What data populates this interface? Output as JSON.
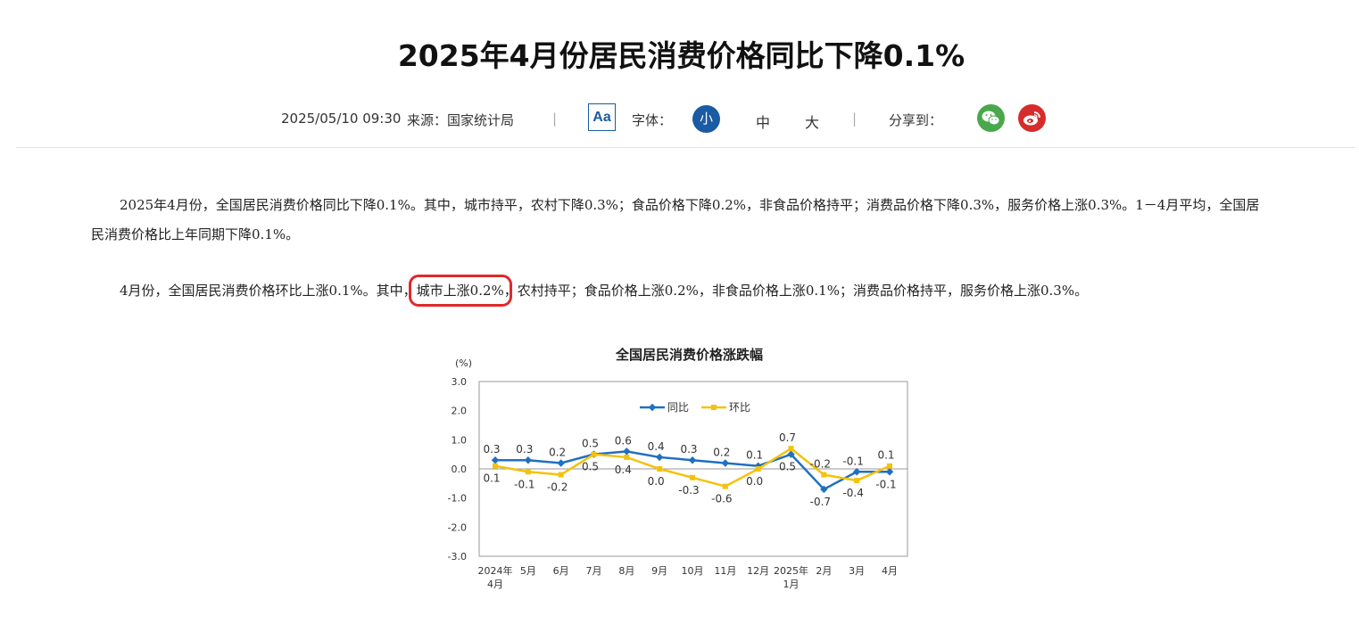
{
  "article": {
    "title": "2025年4月份居民消费价格同比下降0.1%",
    "datetime": "2025/05/10 09:30",
    "source": "来源：国家统计局",
    "separator": "|",
    "aa_label": "Aa",
    "font_label": "字体：",
    "font_sizes": [
      "小",
      "中",
      "大"
    ],
    "share_label": "分享到：",
    "share_icons": [
      "wechat-icon",
      "weibo-icon"
    ],
    "paragraph1": "2025年4月份，全国居民消费价格同比下降0.1%。其中，城市持平，农村下降0.3%；食品价格下降0.2%，非食品价格持平；消费品价格下降0.3%，服务价格上涨0.3%。1－4月平均，全国居民消费价格比上年同期下降0.1%。",
    "paragraph2_before": "4月份，全国居民消费价格环比上涨0.1%。其中，",
    "paragraph2_highlight": "城市上涨0.2%",
    "paragraph2_after": "，农村持平；食品价格上涨0.2%，非食品价格上涨0.1%；消费品价格持平，服务价格上涨0.3%。"
  },
  "colors": {
    "accent_blue": "#1a5ba3",
    "yoy_line": "#1f70c1",
    "mom_line": "#f4c20d",
    "highlight_box": "#e0292b",
    "wechat": "#4aa84c",
    "weibo": "#d62c2c"
  },
  "chart_data": {
    "type": "line",
    "title": "全国居民消费价格涨跌幅",
    "unit_label": "(%)",
    "categories": [
      "2024年\n4月",
      "5月",
      "6月",
      "7月",
      "8月",
      "9月",
      "10月",
      "11月",
      "12月",
      "2025年\n1月",
      "2月",
      "3月",
      "4月"
    ],
    "series": [
      {
        "name": "同比",
        "values": [
          0.3,
          0.3,
          0.2,
          0.5,
          0.6,
          0.4,
          0.3,
          0.2,
          0.1,
          0.5,
          -0.7,
          -0.1,
          -0.1
        ]
      },
      {
        "name": "环比",
        "values": [
          0.1,
          -0.1,
          -0.2,
          0.5,
          0.4,
          0.0,
          -0.3,
          -0.6,
          0.0,
          0.7,
          -0.2,
          -0.4,
          0.1
        ]
      }
    ],
    "ylim": [
      -3.0,
      3.0
    ],
    "yticks": [
      "3.0",
      "2.0",
      "1.0",
      "0.0",
      "-1.0",
      "-2.0",
      "-3.0"
    ],
    "legend_position": "top-center",
    "grid": false
  }
}
